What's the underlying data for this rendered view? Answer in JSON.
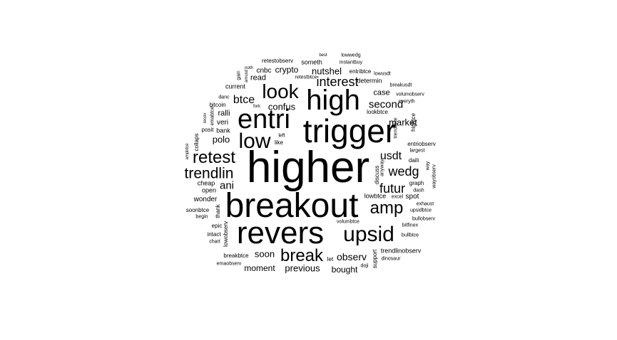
{
  "text_color": "#000000",
  "background": "#ffffff",
  "words": [
    "higher",
    "breakout",
    "revers",
    "trigger",
    "high",
    "entri",
    "upsid",
    "look",
    "low",
    "break",
    "retest",
    "amp",
    "trendlin",
    "interest",
    "futur",
    "wedg",
    "usdt",
    "btce",
    "second",
    "nutshel",
    "polo",
    "observ",
    "crypto",
    "ani",
    "confus",
    "market",
    "soon",
    "moment",
    "previous",
    "bought",
    "case",
    "cnbc",
    "read",
    "someth",
    "retestobserv",
    "current",
    "ralli",
    "veri",
    "bank",
    "posit",
    "bitcoin",
    "danc",
    "wonder",
    "cheap",
    "open",
    "soonbtce",
    "epic",
    "intact",
    "chart",
    "begin",
    "breakbtce",
    "emaobserv",
    "lowobserv",
    "thank",
    "lowbtce",
    "spot",
    "daili",
    "graph",
    "dash",
    "exhaust",
    "upsidbtce",
    "bullobserv",
    "bitfinex",
    "bullbtce",
    "trendlinobserv",
    "dinosaur",
    "support",
    "excel",
    "doji",
    "volumbtce",
    "let",
    "entriobserv",
    "largest",
    "way",
    "wayobserv",
    "anyway",
    "discuss",
    "hightce",
    "trendbtce",
    "everyth",
    "volumobserv",
    "breakusdt",
    "lookbtce",
    "lowusdt",
    "entribtce",
    "determin",
    "retestbtce",
    "instantbuy",
    "lowwedg",
    "noth",
    "fork",
    "like",
    "left",
    "collaps",
    "recov",
    "emabtce",
    "ampbtce",
    "gain",
    "best",
    "amusd"
  ]
}
